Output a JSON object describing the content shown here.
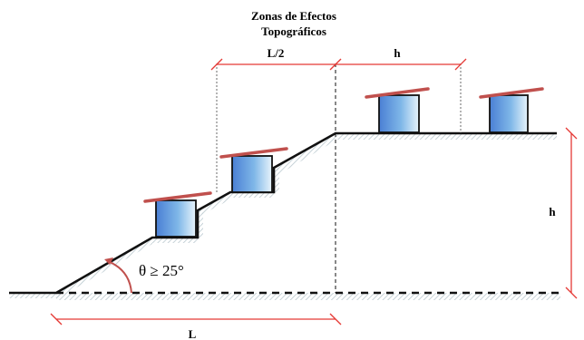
{
  "title": {
    "line1": "Zonas de Efectos",
    "line2": "Topográficos"
  },
  "labels": {
    "half_length": "L/2",
    "height_top": "h",
    "height_right": "h",
    "angle": "θ ≥ 25°",
    "length": "L"
  },
  "colors": {
    "dimension": "#e53935",
    "roof": "#c0504d",
    "house_dark": "#4a7fd4",
    "house_light": "#e8f4fb",
    "ground_hatch": "#b9c8ce",
    "ground_line": "#111111"
  }
}
